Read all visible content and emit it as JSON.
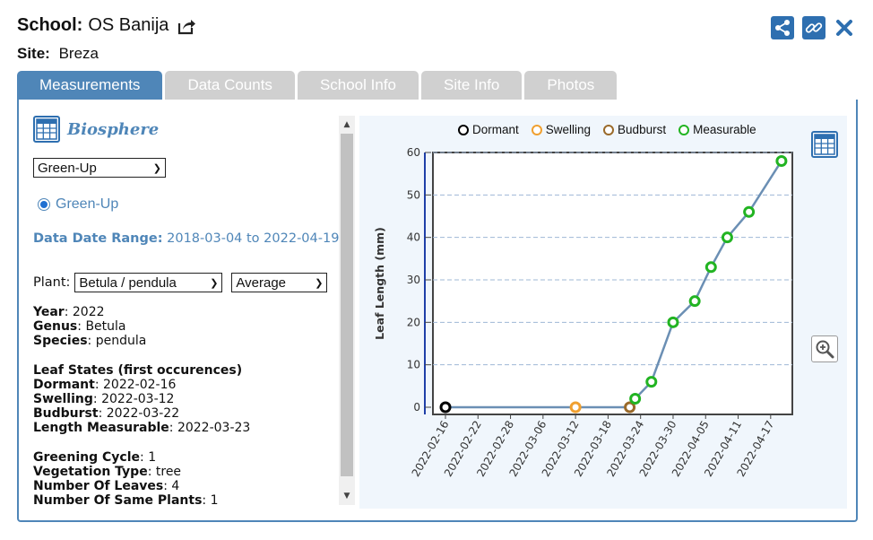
{
  "header": {
    "school_label": "School:",
    "school_name": "OS Banija",
    "site_label": "Site:",
    "site_name": "Breza"
  },
  "tabs": [
    {
      "label": "Measurements",
      "active": true
    },
    {
      "label": "Data Counts",
      "active": false
    },
    {
      "label": "School Info",
      "active": false
    },
    {
      "label": "Site Info",
      "active": false
    },
    {
      "label": "Photos",
      "active": false
    }
  ],
  "left_panel": {
    "protocol_title": "Biosphere",
    "protocol_select": "Green-Up",
    "radio_label": "Green-Up",
    "date_range_label": "Data Date Range:",
    "date_range_value": "2018-03-04 to 2022-04-19",
    "plant_label": "Plant:",
    "plant_select": "Betula / pendula",
    "aggregate_select": "Average",
    "year_label": "Year",
    "year_value": "2022",
    "genus_label": "Genus",
    "genus_value": "Betula",
    "species_label": "Species",
    "species_value": "pendula",
    "leaf_states_heading": "Leaf States (first occurences)",
    "dormant_label": "Dormant",
    "dormant_value": "2022-02-16",
    "swelling_label": "Swelling",
    "swelling_value": "2022-03-12",
    "budburst_label": "Budburst",
    "budburst_value": "2022-03-22",
    "measurable_label": "Length Measurable",
    "measurable_value": "2022-03-23",
    "greening_label": "Greening Cycle",
    "greening_value": "1",
    "vegetation_label": "Vegetation Type",
    "vegetation_value": "tree",
    "leaves_label": "Number Of Leaves",
    "leaves_value": "4",
    "same_plants_label": "Number Of Same Plants",
    "same_plants_value": "1"
  },
  "colors": {
    "accent": "#4f86b8",
    "button_blue": "#2e6fb0",
    "line": "#6b8fb4",
    "dormant": "#000000",
    "swelling": "#f0a030",
    "budburst": "#9a6a2a",
    "measurable": "#22b422"
  },
  "icons": [
    "external-link-icon",
    "share-icon",
    "link-icon",
    "close-icon",
    "table-icon",
    "zoom-in-icon"
  ],
  "chart_data": {
    "type": "line",
    "ylabel": "Leaf Length (mm)",
    "xlabel": "",
    "ylim": [
      0,
      60
    ],
    "yticks": [
      0,
      10,
      20,
      30,
      40,
      50,
      60
    ],
    "xlim": [
      "2022-02-16",
      "2022-04-21"
    ],
    "xticks": [
      "2022-02-16",
      "2022-02-22",
      "2022-02-28",
      "2022-03-06",
      "2022-03-12",
      "2022-03-18",
      "2022-03-24",
      "2022-03-30",
      "2022-04-05",
      "2022-04-11",
      "2022-04-17"
    ],
    "grid": true,
    "legend": [
      "Dormant",
      "Swelling",
      "Budburst",
      "Measurable"
    ],
    "legend_position": "top",
    "points": [
      {
        "date": "2022-02-16",
        "value": 0,
        "state": "Dormant"
      },
      {
        "date": "2022-03-12",
        "value": 0,
        "state": "Swelling"
      },
      {
        "date": "2022-03-22",
        "value": 0,
        "state": "Budburst"
      },
      {
        "date": "2022-03-23",
        "value": 2,
        "state": "Measurable"
      },
      {
        "date": "2022-03-26",
        "value": 6,
        "state": "Measurable"
      },
      {
        "date": "2022-03-30",
        "value": 20,
        "state": "Measurable"
      },
      {
        "date": "2022-04-03",
        "value": 25,
        "state": "Measurable"
      },
      {
        "date": "2022-04-06",
        "value": 33,
        "state": "Measurable"
      },
      {
        "date": "2022-04-09",
        "value": 40,
        "state": "Measurable"
      },
      {
        "date": "2022-04-13",
        "value": 46,
        "state": "Measurable"
      },
      {
        "date": "2022-04-19",
        "value": 58,
        "state": "Measurable"
      }
    ]
  }
}
